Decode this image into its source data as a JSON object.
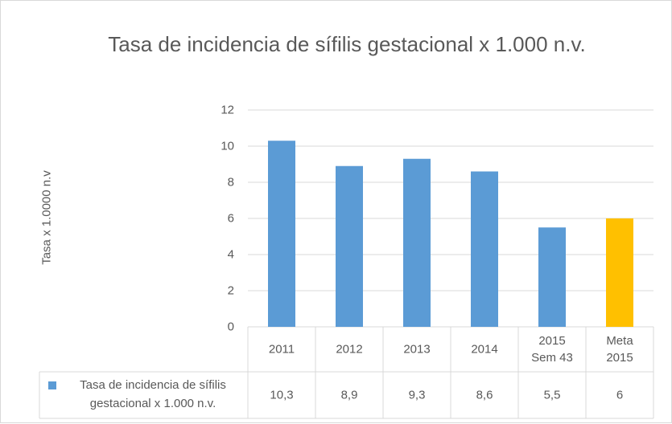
{
  "chart_data": {
    "type": "bar",
    "title": "Tasa de incidencia de sífilis gestacional x 1.000 n.v.",
    "y_label": "Tasa x 1.0000 n.v",
    "categories": [
      "2011",
      "2012",
      "2013",
      "2014",
      "2015 Sem 43",
      "Meta 2015"
    ],
    "series": [
      {
        "name": "Tasa de incidencia de sífilis gestacional x 1.000 n.v.",
        "color": "#5b9bd5",
        "colors": [
          "#5b9bd5",
          "#5b9bd5",
          "#5b9bd5",
          "#5b9bd5",
          "#5b9bd5",
          "#ffc000"
        ],
        "values": [
          10.3,
          8.9,
          9.3,
          8.6,
          5.5,
          6
        ],
        "value_labels": [
          "10,3",
          "8,9",
          "9,3",
          "8,6",
          "5,5",
          "6"
        ]
      }
    ],
    "ylim": [
      0,
      12
    ],
    "yticks": [
      0,
      2,
      4,
      6,
      8,
      10,
      12
    ],
    "grid": true
  }
}
